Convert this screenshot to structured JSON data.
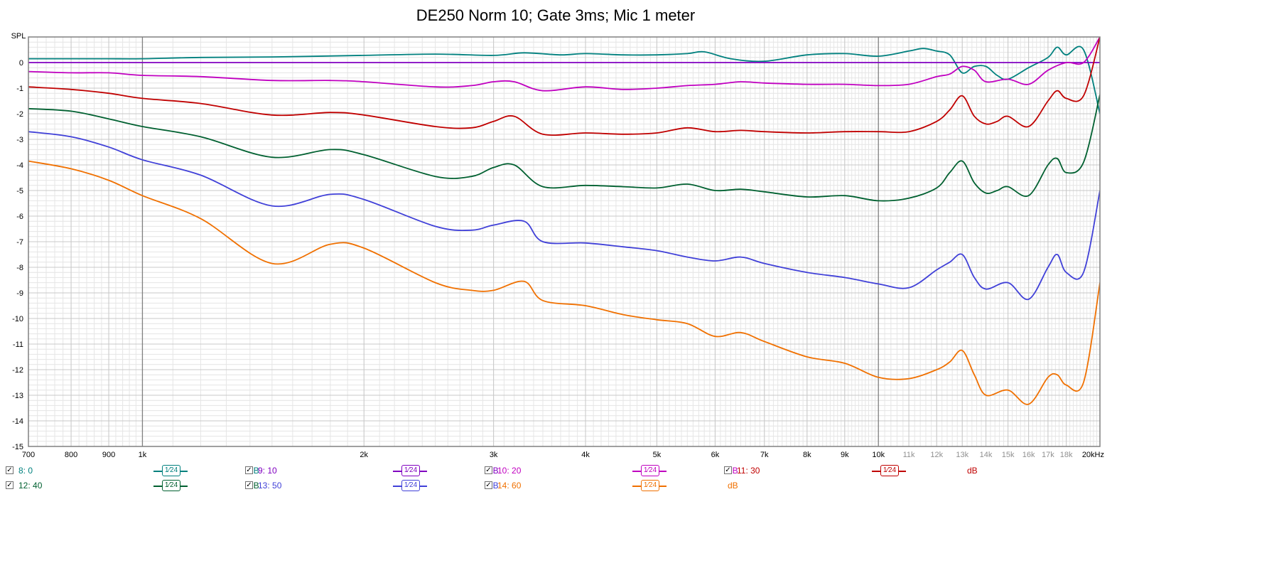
{
  "chart_data": {
    "type": "line",
    "title": "DE250 Norm 10; Gate 3ms; Mic 1 meter",
    "ylabel": "SPL",
    "xlabel": "",
    "x_scale": "log",
    "xlim": [
      700,
      20000
    ],
    "ylim": [
      -15,
      1
    ],
    "x_ticks": [
      {
        "value": 700,
        "label": "700"
      },
      {
        "value": 800,
        "label": "800"
      },
      {
        "value": 900,
        "label": "900"
      },
      {
        "value": 1000,
        "label": "1k"
      },
      {
        "value": 2000,
        "label": "2k"
      },
      {
        "value": 3000,
        "label": "3k"
      },
      {
        "value": 4000,
        "label": "4k"
      },
      {
        "value": 5000,
        "label": "5k"
      },
      {
        "value": 6000,
        "label": "6k"
      },
      {
        "value": 7000,
        "label": "7k"
      },
      {
        "value": 8000,
        "label": "8k"
      },
      {
        "value": 9000,
        "label": "9k"
      },
      {
        "value": 10000,
        "label": "10k"
      },
      {
        "value": 11000,
        "label": "11k"
      },
      {
        "value": 12000,
        "label": "12k"
      },
      {
        "value": 13000,
        "label": "13k"
      },
      {
        "value": 14000,
        "label": "14k"
      },
      {
        "value": 15000,
        "label": "15k"
      },
      {
        "value": 16000,
        "label": "16k"
      },
      {
        "value": 17000,
        "label": "17k"
      },
      {
        "value": 18000,
        "label": "18k"
      },
      {
        "value": 20000,
        "label": "20kHz"
      }
    ],
    "y_ticks": [
      {
        "value": 0,
        "label": "0"
      },
      {
        "value": -1,
        "label": "-1"
      },
      {
        "value": -2,
        "label": "-2"
      },
      {
        "value": -3,
        "label": "-3"
      },
      {
        "value": -4,
        "label": "-4"
      },
      {
        "value": -5,
        "label": "-5"
      },
      {
        "value": -6,
        "label": "-6"
      },
      {
        "value": -7,
        "label": "-7"
      },
      {
        "value": -8,
        "label": "-8"
      },
      {
        "value": -9,
        "label": "-9"
      },
      {
        "value": -10,
        "label": "-10"
      },
      {
        "value": -11,
        "label": "-11"
      },
      {
        "value": -12,
        "label": "-12"
      },
      {
        "value": -13,
        "label": "-13"
      },
      {
        "value": -14,
        "label": "-14"
      },
      {
        "value": -15,
        "label": "-15"
      }
    ],
    "grid": true,
    "series": [
      {
        "name": "8: 0",
        "color": "#00807e",
        "points": [
          [
            700,
            0.15
          ],
          [
            800,
            0.15
          ],
          [
            900,
            0.15
          ],
          [
            1000,
            0.15
          ],
          [
            1200,
            0.2
          ],
          [
            1500,
            0.22
          ],
          [
            2000,
            0.28
          ],
          [
            2500,
            0.33
          ],
          [
            3000,
            0.28
          ],
          [
            3300,
            0.38
          ],
          [
            3700,
            0.3
          ],
          [
            4000,
            0.35
          ],
          [
            4500,
            0.3
          ],
          [
            5000,
            0.3
          ],
          [
            5500,
            0.35
          ],
          [
            5800,
            0.42
          ],
          [
            6300,
            0.15
          ],
          [
            7000,
            0.05
          ],
          [
            8000,
            0.3
          ],
          [
            9000,
            0.35
          ],
          [
            10000,
            0.25
          ],
          [
            11000,
            0.45
          ],
          [
            11500,
            0.55
          ],
          [
            12000,
            0.45
          ],
          [
            12500,
            0.3
          ],
          [
            13000,
            -0.4
          ],
          [
            13500,
            -0.15
          ],
          [
            14000,
            -0.15
          ],
          [
            14500,
            -0.5
          ],
          [
            15000,
            -0.65
          ],
          [
            16000,
            -0.2
          ],
          [
            17000,
            0.2
          ],
          [
            17500,
            0.6
          ],
          [
            18000,
            0.3
          ],
          [
            19000,
            0.5
          ],
          [
            20000,
            -2.0
          ]
        ]
      },
      {
        "name": "9: 10",
        "color": "#8000c0",
        "points": [
          [
            700,
            0
          ],
          [
            1000,
            0
          ],
          [
            2000,
            0
          ],
          [
            5000,
            0
          ],
          [
            10000,
            0
          ],
          [
            15000,
            0
          ],
          [
            20000,
            0
          ]
        ]
      },
      {
        "name": "10: 20",
        "color": "#c000c0",
        "points": [
          [
            700,
            -0.35
          ],
          [
            800,
            -0.4
          ],
          [
            900,
            -0.4
          ],
          [
            1000,
            -0.5
          ],
          [
            1200,
            -0.55
          ],
          [
            1500,
            -0.7
          ],
          [
            1800,
            -0.7
          ],
          [
            2000,
            -0.75
          ],
          [
            2500,
            -0.95
          ],
          [
            2800,
            -0.9
          ],
          [
            3000,
            -0.75
          ],
          [
            3200,
            -0.75
          ],
          [
            3500,
            -1.1
          ],
          [
            4000,
            -0.95
          ],
          [
            4500,
            -1.05
          ],
          [
            5000,
            -1.0
          ],
          [
            5500,
            -0.9
          ],
          [
            6000,
            -0.85
          ],
          [
            6500,
            -0.75
          ],
          [
            7000,
            -0.8
          ],
          [
            8000,
            -0.85
          ],
          [
            9000,
            -0.85
          ],
          [
            10000,
            -0.9
          ],
          [
            11000,
            -0.85
          ],
          [
            12000,
            -0.55
          ],
          [
            12500,
            -0.45
          ],
          [
            13000,
            -0.15
          ],
          [
            13500,
            -0.3
          ],
          [
            14000,
            -0.75
          ],
          [
            15000,
            -0.65
          ],
          [
            16000,
            -0.85
          ],
          [
            17000,
            -0.3
          ],
          [
            18000,
            0.0
          ],
          [
            19000,
            0.0
          ],
          [
            20000,
            1.0
          ]
        ]
      },
      {
        "name": "11: 30",
        "color": "#c00000",
        "points": [
          [
            700,
            -0.95
          ],
          [
            800,
            -1.05
          ],
          [
            900,
            -1.2
          ],
          [
            1000,
            -1.4
          ],
          [
            1200,
            -1.6
          ],
          [
            1500,
            -2.05
          ],
          [
            1800,
            -1.95
          ],
          [
            2000,
            -2.05
          ],
          [
            2500,
            -2.5
          ],
          [
            2800,
            -2.55
          ],
          [
            3000,
            -2.3
          ],
          [
            3200,
            -2.1
          ],
          [
            3500,
            -2.8
          ],
          [
            4000,
            -2.75
          ],
          [
            4500,
            -2.8
          ],
          [
            5000,
            -2.75
          ],
          [
            5500,
            -2.55
          ],
          [
            6000,
            -2.7
          ],
          [
            6500,
            -2.65
          ],
          [
            7000,
            -2.7
          ],
          [
            8000,
            -2.75
          ],
          [
            9000,
            -2.7
          ],
          [
            10000,
            -2.7
          ],
          [
            11000,
            -2.7
          ],
          [
            12000,
            -2.3
          ],
          [
            12500,
            -1.85
          ],
          [
            13000,
            -1.3
          ],
          [
            13500,
            -2.1
          ],
          [
            14000,
            -2.4
          ],
          [
            14500,
            -2.3
          ],
          [
            15000,
            -2.1
          ],
          [
            16000,
            -2.5
          ],
          [
            17000,
            -1.5
          ],
          [
            17500,
            -1.1
          ],
          [
            18000,
            -1.4
          ],
          [
            19000,
            -1.3
          ],
          [
            20000,
            1.0
          ]
        ]
      },
      {
        "name": "12: 40",
        "color": "#006030",
        "points": [
          [
            700,
            -1.8
          ],
          [
            800,
            -1.9
          ],
          [
            900,
            -2.2
          ],
          [
            1000,
            -2.5
          ],
          [
            1200,
            -2.9
          ],
          [
            1500,
            -3.7
          ],
          [
            1800,
            -3.4
          ],
          [
            2000,
            -3.6
          ],
          [
            2500,
            -4.45
          ],
          [
            2800,
            -4.45
          ],
          [
            3000,
            -4.1
          ],
          [
            3200,
            -4.0
          ],
          [
            3500,
            -4.85
          ],
          [
            4000,
            -4.8
          ],
          [
            4500,
            -4.85
          ],
          [
            5000,
            -4.9
          ],
          [
            5500,
            -4.75
          ],
          [
            6000,
            -5.0
          ],
          [
            6500,
            -4.95
          ],
          [
            7000,
            -5.05
          ],
          [
            8000,
            -5.25
          ],
          [
            9000,
            -5.2
          ],
          [
            10000,
            -5.4
          ],
          [
            11000,
            -5.3
          ],
          [
            12000,
            -4.9
          ],
          [
            12500,
            -4.3
          ],
          [
            13000,
            -3.85
          ],
          [
            13500,
            -4.7
          ],
          [
            14000,
            -5.1
          ],
          [
            14500,
            -5.0
          ],
          [
            15000,
            -4.85
          ],
          [
            16000,
            -5.2
          ],
          [
            17000,
            -4.0
          ],
          [
            17500,
            -3.75
          ],
          [
            18000,
            -4.3
          ],
          [
            19000,
            -3.9
          ],
          [
            20000,
            -1.25
          ]
        ]
      },
      {
        "name": "13: 50",
        "color": "#4040d8",
        "points": [
          [
            700,
            -2.7
          ],
          [
            800,
            -2.9
          ],
          [
            900,
            -3.3
          ],
          [
            1000,
            -3.8
          ],
          [
            1200,
            -4.4
          ],
          [
            1500,
            -5.6
          ],
          [
            1800,
            -5.15
          ],
          [
            2000,
            -5.35
          ],
          [
            2500,
            -6.4
          ],
          [
            2800,
            -6.55
          ],
          [
            3000,
            -6.35
          ],
          [
            3300,
            -6.2
          ],
          [
            3500,
            -7.0
          ],
          [
            4000,
            -7.05
          ],
          [
            4500,
            -7.2
          ],
          [
            5000,
            -7.35
          ],
          [
            5500,
            -7.6
          ],
          [
            6000,
            -7.75
          ],
          [
            6500,
            -7.6
          ],
          [
            7000,
            -7.85
          ],
          [
            8000,
            -8.2
          ],
          [
            9000,
            -8.4
          ],
          [
            10000,
            -8.65
          ],
          [
            11000,
            -8.8
          ],
          [
            12000,
            -8.1
          ],
          [
            12500,
            -7.8
          ],
          [
            13000,
            -7.5
          ],
          [
            13500,
            -8.4
          ],
          [
            14000,
            -8.85
          ],
          [
            15000,
            -8.6
          ],
          [
            16000,
            -9.25
          ],
          [
            17000,
            -8.0
          ],
          [
            17500,
            -7.5
          ],
          [
            18000,
            -8.2
          ],
          [
            19000,
            -8.2
          ],
          [
            20000,
            -5.0
          ]
        ]
      },
      {
        "name": "14: 60",
        "color": "#f07000",
        "points": [
          [
            700,
            -3.85
          ],
          [
            800,
            -4.15
          ],
          [
            900,
            -4.6
          ],
          [
            1000,
            -5.2
          ],
          [
            1200,
            -6.1
          ],
          [
            1500,
            -7.85
          ],
          [
            1800,
            -7.1
          ],
          [
            2000,
            -7.25
          ],
          [
            2500,
            -8.6
          ],
          [
            2800,
            -8.9
          ],
          [
            3000,
            -8.9
          ],
          [
            3300,
            -8.55
          ],
          [
            3500,
            -9.3
          ],
          [
            4000,
            -9.5
          ],
          [
            4500,
            -9.85
          ],
          [
            5000,
            -10.05
          ],
          [
            5500,
            -10.2
          ],
          [
            6000,
            -10.7
          ],
          [
            6500,
            -10.55
          ],
          [
            7000,
            -10.9
          ],
          [
            8000,
            -11.5
          ],
          [
            9000,
            -11.75
          ],
          [
            10000,
            -12.3
          ],
          [
            11000,
            -12.35
          ],
          [
            12000,
            -12.0
          ],
          [
            12500,
            -11.7
          ],
          [
            13000,
            -11.25
          ],
          [
            13500,
            -12.2
          ],
          [
            14000,
            -13.0
          ],
          [
            15000,
            -12.8
          ],
          [
            16000,
            -13.35
          ],
          [
            17000,
            -12.3
          ],
          [
            17500,
            -12.2
          ],
          [
            18000,
            -12.6
          ],
          [
            19000,
            -12.5
          ],
          [
            20000,
            -8.6
          ]
        ]
      }
    ]
  },
  "legend": {
    "smoothing": "1⁄24",
    "checkbox_mark": "✓",
    "items": [
      {
        "label": "8: 0",
        "unit": "dB",
        "color": "#00807e",
        "checked": true
      },
      {
        "label": "9: 10",
        "unit": "dB",
        "color": "#8000c0",
        "checked": true
      },
      {
        "label": "10: 20",
        "unit": "dB",
        "color": "#c000c0",
        "checked": true
      },
      {
        "label": "11: 30",
        "unit": "dB",
        "color": "#c00000",
        "checked": true
      },
      {
        "label": "12: 40",
        "unit": "dB",
        "color": "#006030",
        "checked": true
      },
      {
        "label": "13: 50",
        "unit": "dB",
        "color": "#4040d8",
        "checked": true
      },
      {
        "label": "14: 60",
        "unit": "dB",
        "color": "#f07000",
        "checked": true
      }
    ]
  }
}
